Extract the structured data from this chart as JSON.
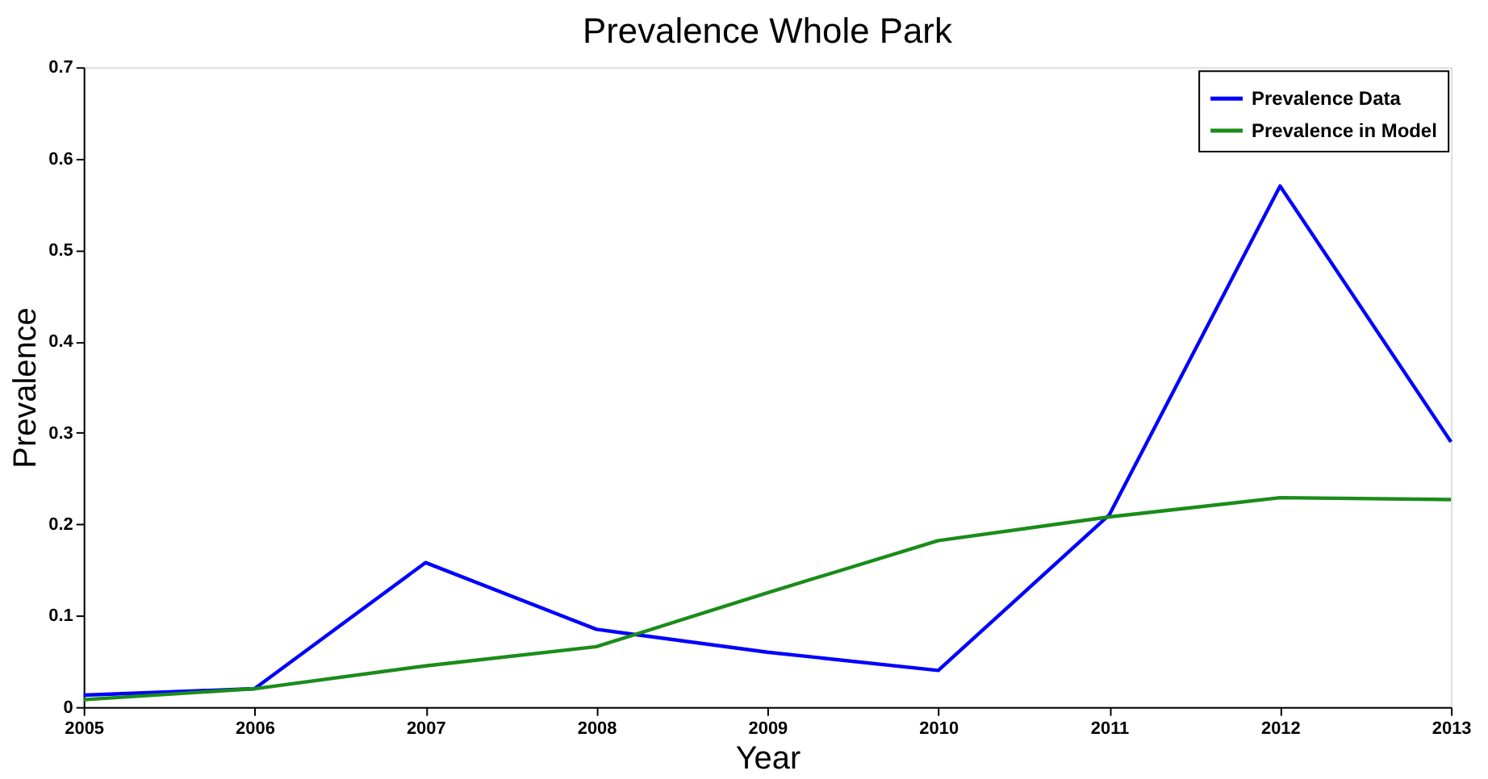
{
  "chart_data": {
    "type": "line",
    "title": "Prevalence Whole Park",
    "xlabel": "Year",
    "ylabel": "Prevalence",
    "x": [
      2005,
      2006,
      2007,
      2008,
      2009,
      2010,
      2011,
      2012,
      2013
    ],
    "series": [
      {
        "name": "Prevalence Data",
        "color": "#0000ff",
        "values": [
          0.013,
          0.02,
          0.158,
          0.085,
          0.06,
          0.04,
          0.21,
          0.57,
          0.29
        ]
      },
      {
        "name": "Prevalence in Model",
        "color": "#1a8c1a",
        "values": [
          0.008,
          0.02,
          0.045,
          0.066,
          0.125,
          0.182,
          0.208,
          0.229,
          0.227
        ]
      }
    ],
    "xlim": [
      2005,
      2013
    ],
    "xticks": [
      2005,
      2006,
      2007,
      2008,
      2009,
      2010,
      2011,
      2012,
      2013
    ],
    "ylim": [
      0,
      0.7
    ],
    "yticks": [
      0,
      0.1,
      0.2,
      0.3,
      0.4,
      0.5,
      0.6,
      0.7
    ],
    "grid": false,
    "legend": "top right",
    "marker": "none",
    "line_style": "solid"
  }
}
